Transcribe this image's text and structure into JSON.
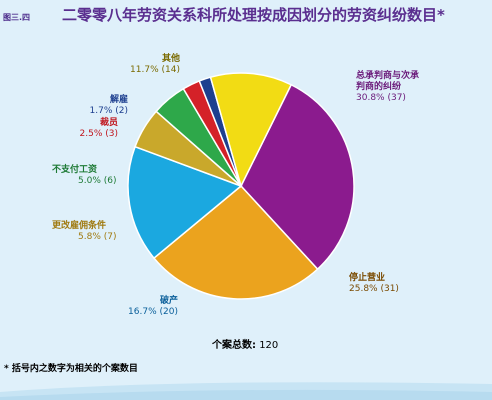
{
  "figure_number": "图三.四",
  "title": "二零零八年劳资关系科所处理按成因划分的劳资纠纷数目*",
  "total_label": "个案总数:",
  "total_value": "120",
  "footnote": "* 括号内之数字为相关的个案数目",
  "chart_data": {
    "type": "pie",
    "title": "二零零八年劳资关系科所处理按成因划分的劳资纠纷数目*",
    "slices": [
      {
        "name": "总承判商与次承判商的纠纷",
        "value": 37,
        "percent": "30.8%",
        "count": "(37)",
        "color": "#8b1b8e",
        "label_color": "#6a1a7a"
      },
      {
        "name": "停止营业",
        "value": 31,
        "percent": "25.8%",
        "count": "(31)",
        "color": "#eba31e",
        "label_color": "#7a4a00"
      },
      {
        "name": "破产",
        "value": 20,
        "percent": "16.7%",
        "count": "(20)",
        "color": "#1ba8e0",
        "label_color": "#0a5f9a"
      },
      {
        "name": "更改雇佣条件",
        "value": 7,
        "percent": "5.8%",
        "count": "(7)",
        "color": "#c9a82b",
        "label_color": "#a07a10"
      },
      {
        "name": "不支付工资",
        "value": 6,
        "percent": "5.0%",
        "count": "(6)",
        "color": "#2ea84a",
        "label_color": "#1e7a35"
      },
      {
        "name": "裁员",
        "value": 3,
        "percent": "2.5%",
        "count": "(3)",
        "color": "#d42128",
        "label_color": "#c0161e"
      },
      {
        "name": "解雇",
        "value": 2,
        "percent": "1.7%",
        "count": "(2)",
        "color": "#1d3f8f",
        "label_color": "#1d3f8f"
      },
      {
        "name": "其他",
        "value": 14,
        "percent": "11.7%",
        "count": "(14)",
        "color": "#f2dc14",
        "label_color": "#7a6a00"
      }
    ]
  }
}
